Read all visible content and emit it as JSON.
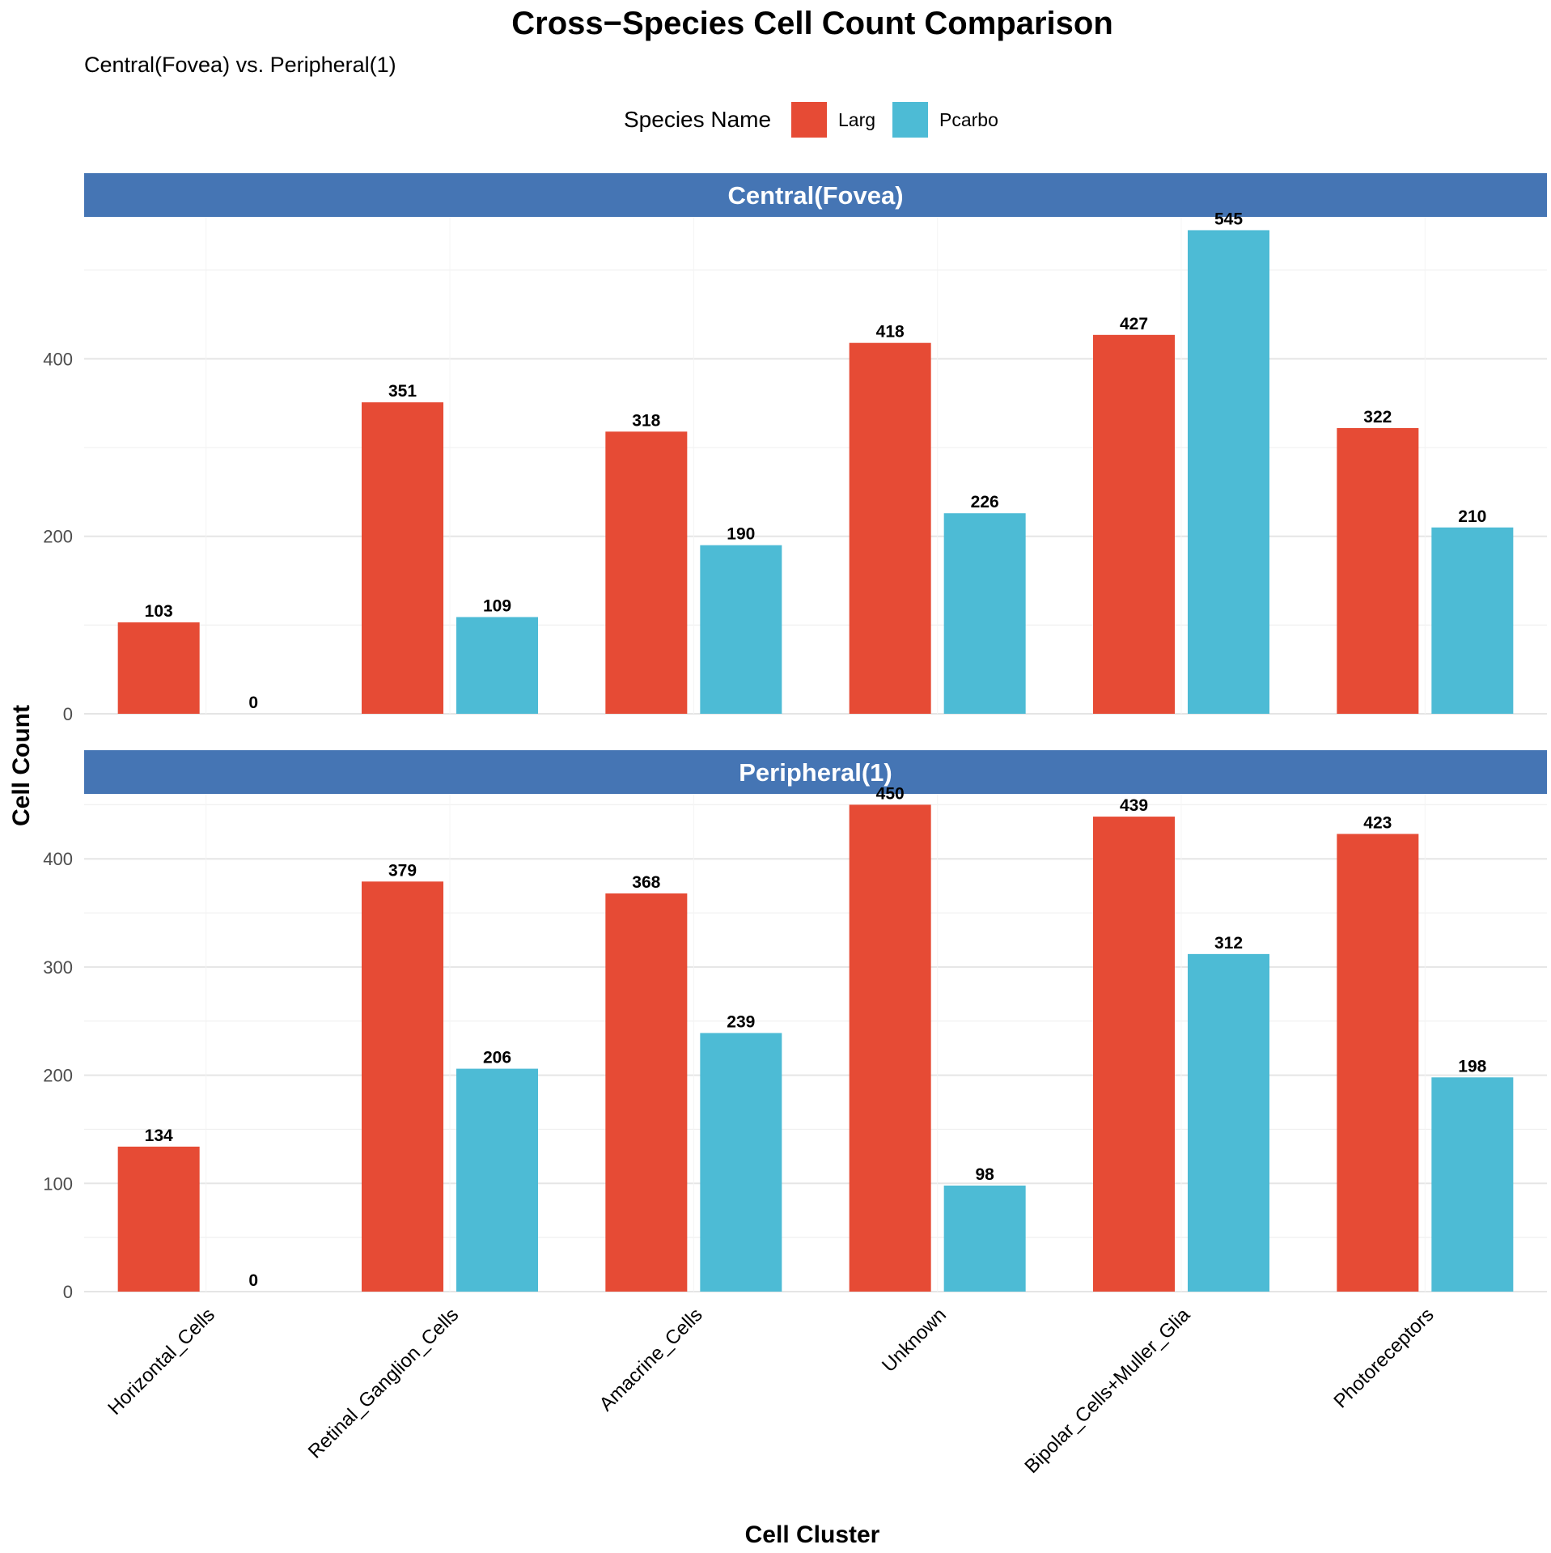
{
  "chart_data": {
    "type": "bar",
    "title": "Cross−Species Cell Count Comparison",
    "subtitle": "Central(Fovea) vs. Peripheral(1)",
    "xlabel": "Cell Cluster",
    "ylabel": "Cell Count",
    "legend": {
      "title": "Species Name",
      "position": "top",
      "entries": [
        {
          "name": "Larg",
          "color": "#E64B35"
        },
        {
          "name": "Pcarbo",
          "color": "#4DBBD5"
        }
      ]
    },
    "categories": [
      "Horizontal_Cells",
      "Retinal_Ganglion_Cells",
      "Amacrine_Cells",
      "Unknown",
      "Bipolar_Cells+Muller_Glia",
      "Photoreceptors"
    ],
    "grid": true,
    "panels": [
      {
        "name": "Central(Fovea)",
        "ylim": [
          0,
          560
        ],
        "yticks": [
          0,
          200,
          400
        ],
        "series": [
          {
            "name": "Larg",
            "values": [
              103,
              351,
              318,
              418,
              427,
              322
            ]
          },
          {
            "name": "Pcarbo",
            "values": [
              0,
              109,
              190,
              226,
              545,
              210
            ]
          }
        ]
      },
      {
        "name": "Peripheral(1)",
        "ylim": [
          0,
          460
        ],
        "yticks": [
          0,
          100,
          200,
          300,
          400
        ],
        "series": [
          {
            "name": "Larg",
            "values": [
              134,
              379,
              368,
              450,
              439,
              423
            ]
          },
          {
            "name": "Pcarbo",
            "values": [
              0,
              206,
              239,
              98,
              312,
              198
            ]
          }
        ]
      }
    ],
    "colors": {
      "strip": "#4575B4",
      "strip_text": "#FFFFFF"
    }
  }
}
